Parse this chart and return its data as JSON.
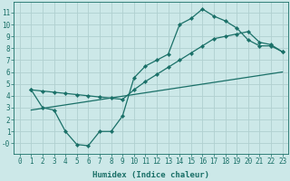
{
  "bg_color": "#cce8e8",
  "grid_color": "#b0d0d0",
  "line_color": "#1a7068",
  "line_width": 0.9,
  "marker": "D",
  "marker_size": 2.2,
  "xlabel": "Humidex (Indice chaleur)",
  "xlabel_fontsize": 6.5,
  "tick_fontsize": 5.5,
  "xlim": [
    -0.5,
    23.5
  ],
  "ylim": [
    -0.9,
    11.9
  ],
  "xticks": [
    0,
    1,
    2,
    3,
    4,
    5,
    6,
    7,
    8,
    9,
    10,
    11,
    12,
    13,
    14,
    15,
    16,
    17,
    18,
    19,
    20,
    21,
    22,
    23
  ],
  "yticks": [
    0,
    1,
    2,
    3,
    4,
    5,
    6,
    7,
    8,
    9,
    10,
    11
  ],
  "ytick_labels": [
    "-0",
    "1",
    "2",
    "3",
    "4",
    "5",
    "6",
    "7",
    "8",
    "9",
    "10",
    "11"
  ],
  "line1_x": [
    1,
    2,
    3,
    4,
    5,
    6,
    7,
    8,
    9,
    10,
    11,
    12,
    13,
    14,
    15,
    16,
    17,
    18,
    19,
    20,
    21,
    22,
    23
  ],
  "line1_y": [
    4.5,
    3.0,
    2.8,
    1.0,
    -0.1,
    -0.2,
    1.0,
    1.0,
    2.3,
    5.5,
    6.5,
    7.0,
    7.5,
    10.0,
    10.5,
    11.3,
    10.7,
    10.3,
    9.7,
    8.7,
    8.2,
    8.2,
    7.7
  ],
  "line2_x": [
    1,
    2,
    3,
    4,
    5,
    6,
    7,
    8,
    9,
    10,
    11,
    12,
    13,
    14,
    15,
    16,
    17,
    18,
    19,
    20,
    21,
    22,
    23
  ],
  "line2_y": [
    4.5,
    4.4,
    4.3,
    4.2,
    4.1,
    4.0,
    3.9,
    3.8,
    3.7,
    4.5,
    5.2,
    5.8,
    6.4,
    7.0,
    7.6,
    8.2,
    8.8,
    9.0,
    9.2,
    9.4,
    8.5,
    8.3,
    7.7
  ],
  "line3_x": [
    1,
    23
  ],
  "line3_y": [
    2.8,
    6.0
  ]
}
